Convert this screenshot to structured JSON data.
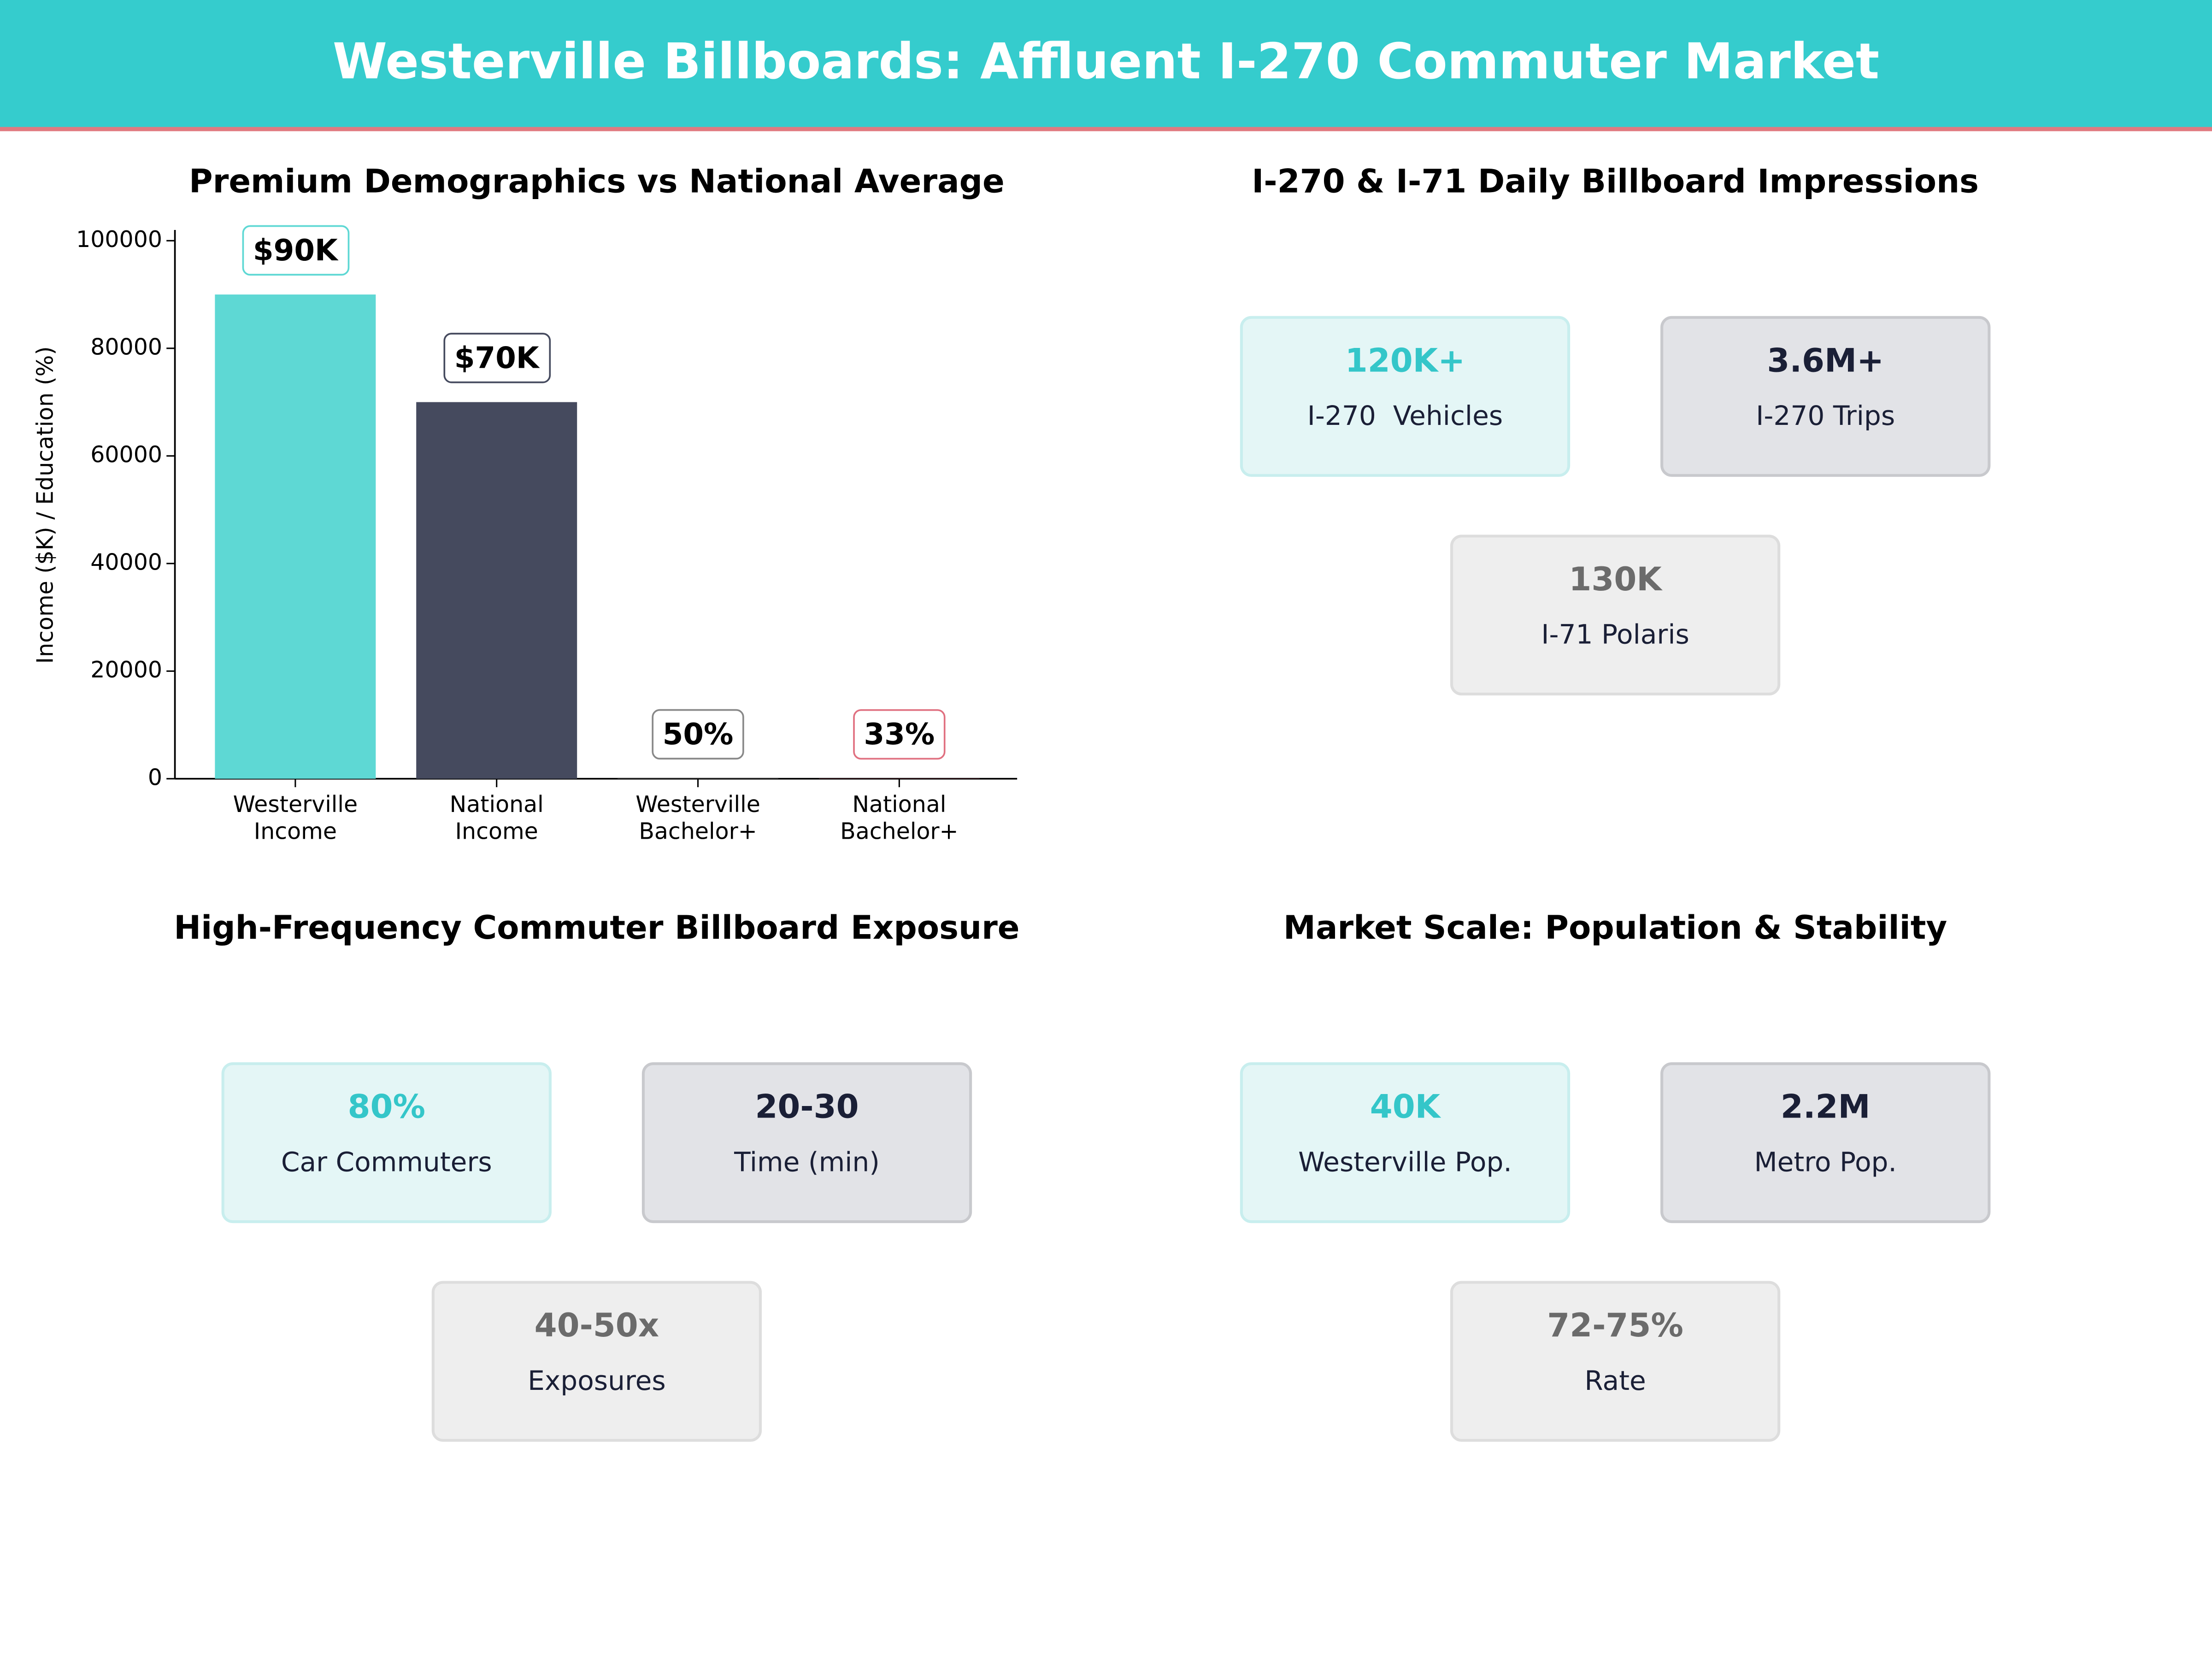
{
  "header": {
    "title": "Westerville Billboards: Affluent I-270 Commuter Market"
  },
  "chart_data": {
    "type": "bar",
    "title": "Premium Demographics vs National Average",
    "y_label": "Income ($K) / Education (%)",
    "categories": [
      "Westerville\nIncome",
      "National\nIncome",
      "Westerville\nBachelor+",
      "National\nBachelor+"
    ],
    "values": [
      90000,
      70000,
      50,
      33
    ],
    "value_labels": [
      "$90K",
      "$70K",
      "50%",
      "33%"
    ],
    "colors": [
      "#5ed8d4",
      "#454a5e",
      "#888888",
      "#e07080"
    ],
    "ylim": [
      0,
      102000
    ],
    "yticks": [
      0,
      20000,
      40000,
      60000,
      80000,
      100000
    ]
  },
  "panels": [
    {
      "title": "I-270 & I-71 Daily Billboard Impressions",
      "cards": [
        {
          "value": "120K+",
          "label": "I-270  Vehicles"
        },
        {
          "value": "3.6M+",
          "label": "I-270 Trips"
        },
        {
          "value": "130K",
          "label": "I-71 Polaris"
        }
      ]
    },
    {
      "title": "High-Frequency Commuter Billboard Exposure",
      "cards": [
        {
          "value": "80%",
          "label": "Car Commuters"
        },
        {
          "value": "20-30",
          "label": "Time (min)"
        },
        {
          "value": "40-50x",
          "label": "Exposures"
        }
      ]
    },
    {
      "title": "Market Scale: Population & Stability",
      "cards": [
        {
          "value": "40K",
          "label": "Westerville Pop."
        },
        {
          "value": "2.2M",
          "label": "Metro Pop."
        },
        {
          "value": "72-75%",
          "label": "Rate"
        }
      ]
    }
  ]
}
